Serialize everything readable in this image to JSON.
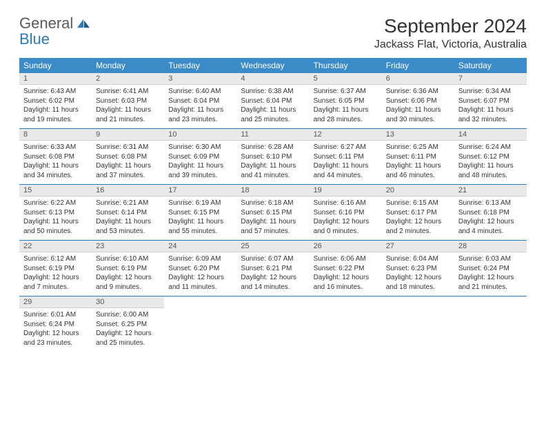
{
  "logo": {
    "line1": "General",
    "line2": "Blue"
  },
  "title": "September 2024",
  "location": "Jackass Flat, Victoria, Australia",
  "colors": {
    "header_bg": "#3b8bc9",
    "header_text": "#ffffff",
    "daynum_bg": "#e9e9e9",
    "border": "#2c7bb8",
    "logo_gray": "#5a5a5a",
    "logo_blue": "#2c7bb8"
  },
  "weekdays": [
    "Sunday",
    "Monday",
    "Tuesday",
    "Wednesday",
    "Thursday",
    "Friday",
    "Saturday"
  ],
  "weeks": [
    [
      {
        "n": "1",
        "sr": "Sunrise: 6:43 AM",
        "ss": "Sunset: 6:02 PM",
        "dl": "Daylight: 11 hours and 19 minutes."
      },
      {
        "n": "2",
        "sr": "Sunrise: 6:41 AM",
        "ss": "Sunset: 6:03 PM",
        "dl": "Daylight: 11 hours and 21 minutes."
      },
      {
        "n": "3",
        "sr": "Sunrise: 6:40 AM",
        "ss": "Sunset: 6:04 PM",
        "dl": "Daylight: 11 hours and 23 minutes."
      },
      {
        "n": "4",
        "sr": "Sunrise: 6:38 AM",
        "ss": "Sunset: 6:04 PM",
        "dl": "Daylight: 11 hours and 25 minutes."
      },
      {
        "n": "5",
        "sr": "Sunrise: 6:37 AM",
        "ss": "Sunset: 6:05 PM",
        "dl": "Daylight: 11 hours and 28 minutes."
      },
      {
        "n": "6",
        "sr": "Sunrise: 6:36 AM",
        "ss": "Sunset: 6:06 PM",
        "dl": "Daylight: 11 hours and 30 minutes."
      },
      {
        "n": "7",
        "sr": "Sunrise: 6:34 AM",
        "ss": "Sunset: 6:07 PM",
        "dl": "Daylight: 11 hours and 32 minutes."
      }
    ],
    [
      {
        "n": "8",
        "sr": "Sunrise: 6:33 AM",
        "ss": "Sunset: 6:08 PM",
        "dl": "Daylight: 11 hours and 34 minutes."
      },
      {
        "n": "9",
        "sr": "Sunrise: 6:31 AM",
        "ss": "Sunset: 6:08 PM",
        "dl": "Daylight: 11 hours and 37 minutes."
      },
      {
        "n": "10",
        "sr": "Sunrise: 6:30 AM",
        "ss": "Sunset: 6:09 PM",
        "dl": "Daylight: 11 hours and 39 minutes."
      },
      {
        "n": "11",
        "sr": "Sunrise: 6:28 AM",
        "ss": "Sunset: 6:10 PM",
        "dl": "Daylight: 11 hours and 41 minutes."
      },
      {
        "n": "12",
        "sr": "Sunrise: 6:27 AM",
        "ss": "Sunset: 6:11 PM",
        "dl": "Daylight: 11 hours and 44 minutes."
      },
      {
        "n": "13",
        "sr": "Sunrise: 6:25 AM",
        "ss": "Sunset: 6:11 PM",
        "dl": "Daylight: 11 hours and 46 minutes."
      },
      {
        "n": "14",
        "sr": "Sunrise: 6:24 AM",
        "ss": "Sunset: 6:12 PM",
        "dl": "Daylight: 11 hours and 48 minutes."
      }
    ],
    [
      {
        "n": "15",
        "sr": "Sunrise: 6:22 AM",
        "ss": "Sunset: 6:13 PM",
        "dl": "Daylight: 11 hours and 50 minutes."
      },
      {
        "n": "16",
        "sr": "Sunrise: 6:21 AM",
        "ss": "Sunset: 6:14 PM",
        "dl": "Daylight: 11 hours and 53 minutes."
      },
      {
        "n": "17",
        "sr": "Sunrise: 6:19 AM",
        "ss": "Sunset: 6:15 PM",
        "dl": "Daylight: 11 hours and 55 minutes."
      },
      {
        "n": "18",
        "sr": "Sunrise: 6:18 AM",
        "ss": "Sunset: 6:15 PM",
        "dl": "Daylight: 11 hours and 57 minutes."
      },
      {
        "n": "19",
        "sr": "Sunrise: 6:16 AM",
        "ss": "Sunset: 6:16 PM",
        "dl": "Daylight: 12 hours and 0 minutes."
      },
      {
        "n": "20",
        "sr": "Sunrise: 6:15 AM",
        "ss": "Sunset: 6:17 PM",
        "dl": "Daylight: 12 hours and 2 minutes."
      },
      {
        "n": "21",
        "sr": "Sunrise: 6:13 AM",
        "ss": "Sunset: 6:18 PM",
        "dl": "Daylight: 12 hours and 4 minutes."
      }
    ],
    [
      {
        "n": "22",
        "sr": "Sunrise: 6:12 AM",
        "ss": "Sunset: 6:19 PM",
        "dl": "Daylight: 12 hours and 7 minutes."
      },
      {
        "n": "23",
        "sr": "Sunrise: 6:10 AM",
        "ss": "Sunset: 6:19 PM",
        "dl": "Daylight: 12 hours and 9 minutes."
      },
      {
        "n": "24",
        "sr": "Sunrise: 6:09 AM",
        "ss": "Sunset: 6:20 PM",
        "dl": "Daylight: 12 hours and 11 minutes."
      },
      {
        "n": "25",
        "sr": "Sunrise: 6:07 AM",
        "ss": "Sunset: 6:21 PM",
        "dl": "Daylight: 12 hours and 14 minutes."
      },
      {
        "n": "26",
        "sr": "Sunrise: 6:06 AM",
        "ss": "Sunset: 6:22 PM",
        "dl": "Daylight: 12 hours and 16 minutes."
      },
      {
        "n": "27",
        "sr": "Sunrise: 6:04 AM",
        "ss": "Sunset: 6:23 PM",
        "dl": "Daylight: 12 hours and 18 minutes."
      },
      {
        "n": "28",
        "sr": "Sunrise: 6:03 AM",
        "ss": "Sunset: 6:24 PM",
        "dl": "Daylight: 12 hours and 21 minutes."
      }
    ],
    [
      {
        "n": "29",
        "sr": "Sunrise: 6:01 AM",
        "ss": "Sunset: 6:24 PM",
        "dl": "Daylight: 12 hours and 23 minutes."
      },
      {
        "n": "30",
        "sr": "Sunrise: 6:00 AM",
        "ss": "Sunset: 6:25 PM",
        "dl": "Daylight: 12 hours and 25 minutes."
      },
      null,
      null,
      null,
      null,
      null
    ]
  ]
}
